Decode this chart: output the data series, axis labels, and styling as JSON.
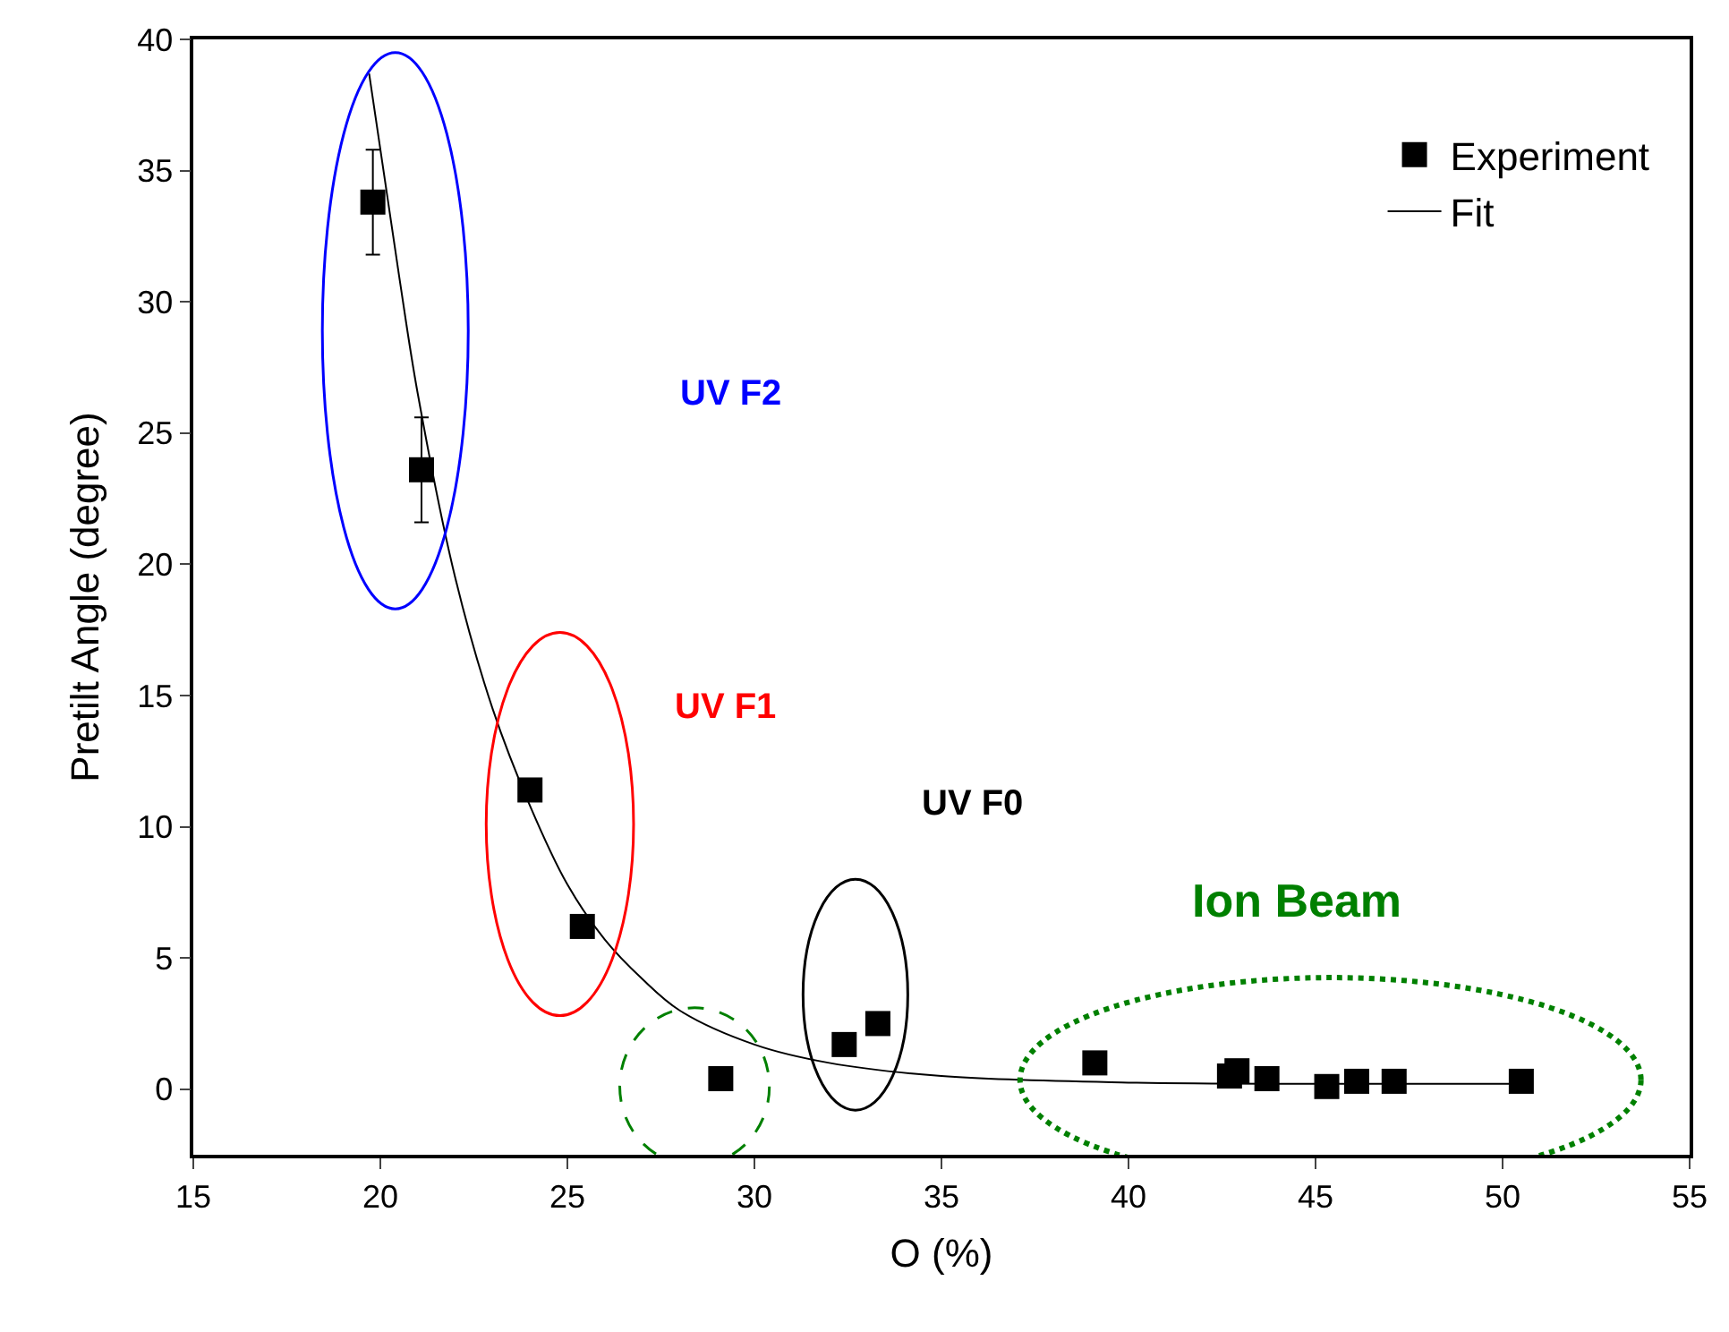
{
  "chart_data": {
    "type": "scatter",
    "xlabel": "O (%)",
    "ylabel": "Pretilt Angle (degree)",
    "xlim": [
      15,
      55
    ],
    "xticks": [
      15,
      20,
      25,
      30,
      35,
      40,
      45,
      50,
      55
    ],
    "ylim": [
      -2.5,
      40
    ],
    "yticks": [
      0,
      5,
      10,
      15,
      20,
      25,
      30,
      35,
      40
    ],
    "legend": "top right",
    "series": [
      {
        "name": "Experiment",
        "marker": "square",
        "color": "#000000",
        "x": [
          19.8,
          21.1,
          24.0,
          25.4,
          29.1,
          32.4,
          33.3,
          39.1,
          42.7,
          42.9,
          43.7,
          45.3,
          46.1,
          47.1,
          50.5
        ],
        "values": [
          33.8,
          23.6,
          11.4,
          6.2,
          0.4,
          1.7,
          2.5,
          1.0,
          0.5,
          0.7,
          0.4,
          0.1,
          0.3,
          0.3,
          0.3
        ],
        "errors": [
          2,
          2,
          null,
          null,
          null,
          null,
          null,
          null,
          null,
          null,
          null,
          null,
          null,
          null,
          null
        ]
      },
      {
        "name": "Fit",
        "type": "line",
        "color": "#000000",
        "x": [
          19.7,
          20.5,
          21,
          22,
          23,
          24,
          25,
          26,
          27,
          28,
          30,
          32,
          35,
          40,
          45,
          50.6
        ],
        "values": [
          38.7,
          31,
          26.5,
          19.5,
          14.5,
          10.8,
          7.8,
          5.7,
          4.2,
          3.0,
          1.7,
          1.0,
          0.5,
          0.25,
          0.2,
          0.2
        ]
      }
    ],
    "annotations": [
      "UV F2",
      "UV F1",
      "UV F0",
      "Ion Beam"
    ]
  }
}
